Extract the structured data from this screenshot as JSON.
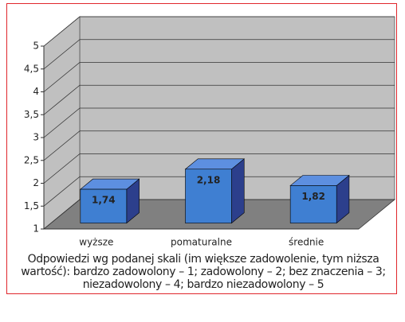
{
  "chart_data": {
    "type": "bar3d",
    "categories": [
      "wyższe",
      "pomaturalne",
      "średnie"
    ],
    "values": [
      1.74,
      2.18,
      1.82
    ],
    "value_labels": [
      "1,74",
      "2,18",
      "1,82"
    ],
    "color": "#3f7fd2",
    "ylim": [
      1,
      5
    ],
    "yticks": [
      1,
      {
        "value": 1.5,
        "label": "1,5"
      },
      2,
      {
        "value": 2.5,
        "label": "2,5"
      },
      3,
      {
        "value": 3.5,
        "label": "3,5"
      },
      4,
      {
        "value": 4.5,
        "label": "4,5"
      },
      5
    ],
    "grid": true,
    "caption": "Odpowiedzi wg podanej skali (im większe zadowolenie, tym niższa wartość): bardzo zadowolony – 1; zadowolony – 2; bez znaczenia – 3; niezadowolony – 4; bardzo niezadowolony – 5"
  }
}
